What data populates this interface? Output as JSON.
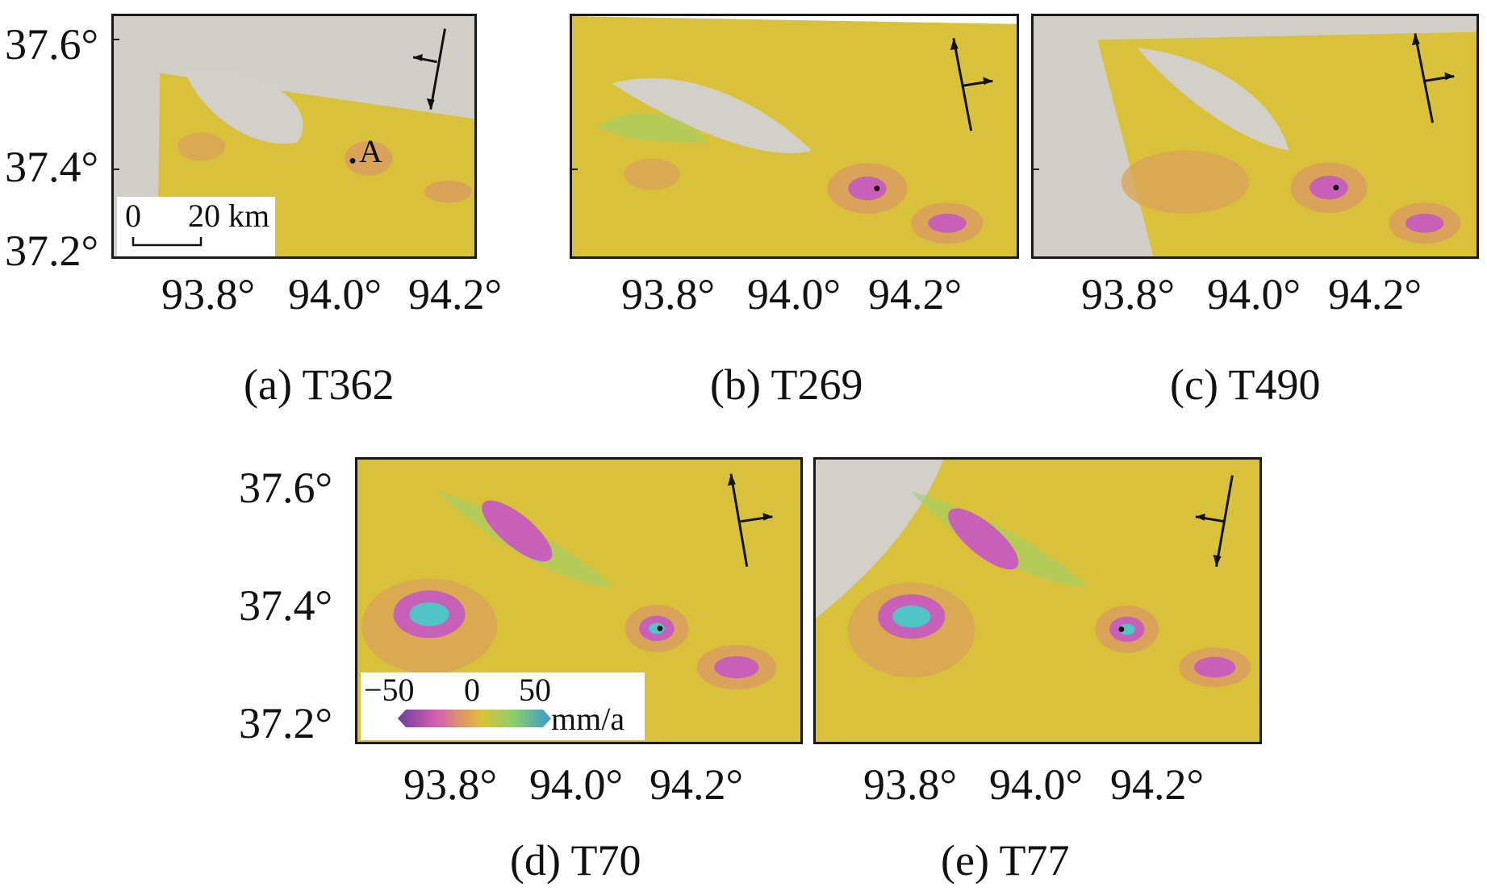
{
  "y_axis_labels": [
    "37.6°",
    "37.4°",
    "37.2°"
  ],
  "x_axis_labels": [
    "93.8°",
    "94.0°",
    "94.2°"
  ],
  "panels": [
    {
      "caption": "(a) T362",
      "heading": "descending"
    },
    {
      "caption": "(b) T269",
      "heading": "ascending"
    },
    {
      "caption": "(c) T490",
      "heading": "ascending"
    },
    {
      "caption": "(d) T70",
      "heading": "ascending"
    },
    {
      "caption": "(e) T77",
      "heading": "descending"
    }
  ],
  "point_label": "A",
  "scale_bar": {
    "start": "0",
    "end": "20 km"
  },
  "colorbar": {
    "ticks": [
      "−50",
      "0",
      "50"
    ],
    "unit": "mm/a"
  },
  "colors": {
    "background_yellow": "#d9c23a",
    "no_data_gray": "#d3d0ca",
    "subsidence_ring": "#d9a45a",
    "subsidence_core": "#c85fb8",
    "uplift_center": "#4fc5c5",
    "green": "#9ccf6a",
    "frame": "#1a1a1a"
  }
}
